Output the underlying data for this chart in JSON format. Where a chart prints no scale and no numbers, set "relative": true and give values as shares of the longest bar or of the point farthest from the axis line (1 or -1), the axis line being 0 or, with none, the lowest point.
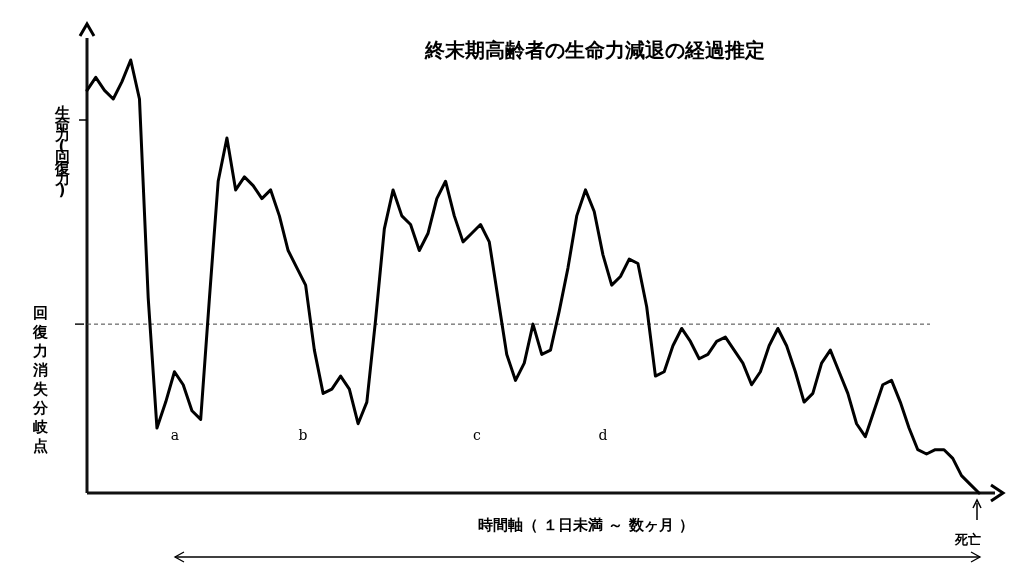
{
  "chart_data": {
    "type": "line",
    "title": "終末期高齢者の生命力減退の経過推定",
    "xlabel": "時間軸（ １日未満 ～ 数ヶ月 ）",
    "ylabel": "生命力(回復力)",
    "relative": true,
    "categories": [
      null,
      null,
      null,
      null,
      null,
      null,
      null,
      null,
      null,
      null,
      null,
      null,
      null,
      null,
      null,
      null,
      null,
      null,
      null,
      null,
      null,
      null,
      null,
      null,
      null,
      null,
      null,
      null,
      null,
      null,
      null,
      null,
      null,
      null,
      null,
      null,
      null,
      null,
      null,
      null,
      null,
      null,
      null,
      null,
      null,
      null,
      null,
      null,
      null,
      null,
      null,
      null,
      null,
      null,
      null,
      null,
      null,
      null,
      null,
      null,
      null,
      null,
      null,
      null,
      null,
      null,
      null,
      null,
      null,
      null,
      null,
      null,
      null,
      null,
      null,
      null,
      null,
      null,
      null,
      null,
      null,
      null,
      null,
      null,
      null,
      null,
      null,
      null,
      null,
      null,
      null,
      null,
      null,
      null,
      null,
      null,
      null,
      null,
      null,
      null,
      null,
      null,
      null
    ],
    "series": [
      {
        "color": "#000000",
        "values": [
          0.93,
          0.96,
          0.93,
          0.91,
          0.95,
          1,
          0.91,
          0.45,
          0.15,
          0.21,
          0.28,
          0.25,
          0.19,
          0.17,
          0.45,
          0.72,
          0.82,
          0.7,
          0.73,
          0.71,
          0.68,
          0.7,
          0.64,
          0.56,
          0.52,
          0.48,
          0.33,
          0.23,
          0.24,
          0.27,
          0.24,
          0.16,
          0.21,
          0.4,
          0.61,
          0.7,
          0.64,
          0.62,
          0.56,
          0.6,
          0.68,
          0.72,
          0.64,
          0.58,
          0.6,
          0.62,
          0.58,
          0.45,
          0.32,
          0.26,
          0.3,
          0.39,
          0.32,
          0.33,
          0.42,
          0.52,
          0.64,
          0.7,
          0.65,
          0.55,
          0.48,
          0.5,
          0.54,
          0.53,
          0.43,
          0.27,
          0.28,
          0.34,
          0.38,
          0.35,
          0.31,
          0.32,
          0.35,
          0.36,
          0.33,
          0.3,
          0.25,
          0.28,
          0.34,
          0.38,
          0.34,
          0.28,
          0.21,
          0.23,
          0.3,
          0.33,
          0.28,
          0.23,
          0.16,
          0.13,
          0.19,
          0.25,
          0.26,
          0.21,
          0.15,
          0.1,
          0.09,
          0.1,
          0.1,
          0.08,
          0.04,
          0.02,
          0
        ]
      }
    ],
    "ref_lines": [
      {
        "axis": "y",
        "value": 0.39,
        "label": "回復力消失分岐点",
        "line_style": "dashed",
        "color": "#444444"
      }
    ],
    "annotations": [
      "a",
      "b",
      "c",
      "d",
      "死亡"
    ]
  }
}
